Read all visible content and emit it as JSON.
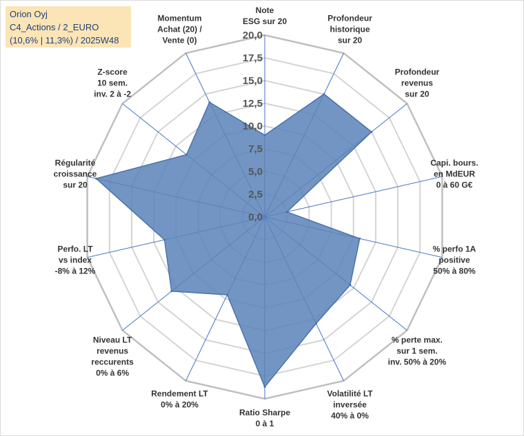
{
  "title": {
    "line1": "Orion Oyj",
    "line2": "C4_Actions / 2_EURO",
    "line3": "(10,6% | 11,3%) / 2025W48"
  },
  "chart_data": {
    "type": "radar",
    "range": [
      0,
      20
    ],
    "tick_values": [
      0,
      2.5,
      5,
      7.5,
      10,
      12.5,
      15,
      17.5,
      20
    ],
    "tick_labels": [
      "0,0",
      "2,5",
      "5,0",
      "7,5",
      "10,0",
      "12,5",
      "15,0",
      "17,5",
      "20,0"
    ],
    "axes": [
      {
        "label": [
          "Note",
          "ESG sur 20"
        ],
        "value": 9.0
      },
      {
        "label": [
          "Profondeur",
          "historique",
          "sur 20"
        ],
        "value": 15.0
      },
      {
        "label": [
          "Profondeur",
          "revenus",
          "sur 20"
        ],
        "value": 15.0
      },
      {
        "label": [
          "Capi. bours.",
          "en MdEUR",
          "0 à 60 G€"
        ],
        "value": 2.5
      },
      {
        "label": [
          "% perfo 1A",
          "positive",
          "50% à 80%"
        ],
        "value": 10.7
      },
      {
        "label": [
          "% perte max.",
          "sur 1 sem.",
          "inv. 50% à 20%"
        ],
        "value": 12.0
      },
      {
        "label": [
          "Volatilité LT",
          "inversée",
          "40% à 0%"
        ],
        "value": 13.0
      },
      {
        "label": [
          "Ratio Sharpe",
          "0 à 1"
        ],
        "value": 18.7
      },
      {
        "label": [
          "Rendement LT",
          "0% à 20%"
        ],
        "value": 9.5
      },
      {
        "label": [
          "Niveau LT",
          "revenus",
          "reccurents",
          "0% à 6%"
        ],
        "value": 13.1
      },
      {
        "label": [
          "Perfo. LT",
          "vs index",
          "-8% à 12%"
        ],
        "value": 11.3
      },
      {
        "label": [
          "Régularité",
          "croissance",
          "sur 20"
        ],
        "value": 19.0
      },
      {
        "label": [
          "Z-score",
          "10 sem.",
          "inv. 2 à -2"
        ],
        "value": 11.0
      },
      {
        "label": [
          "Momentum",
          "Achat (20) /",
          "Vente (0)"
        ],
        "value": 14.0
      }
    ],
    "colors": {
      "fill": "#5b82b8",
      "stroke": "#4a72a8",
      "spoke": "#4472c4",
      "grid": "#d4d4d4"
    }
  }
}
